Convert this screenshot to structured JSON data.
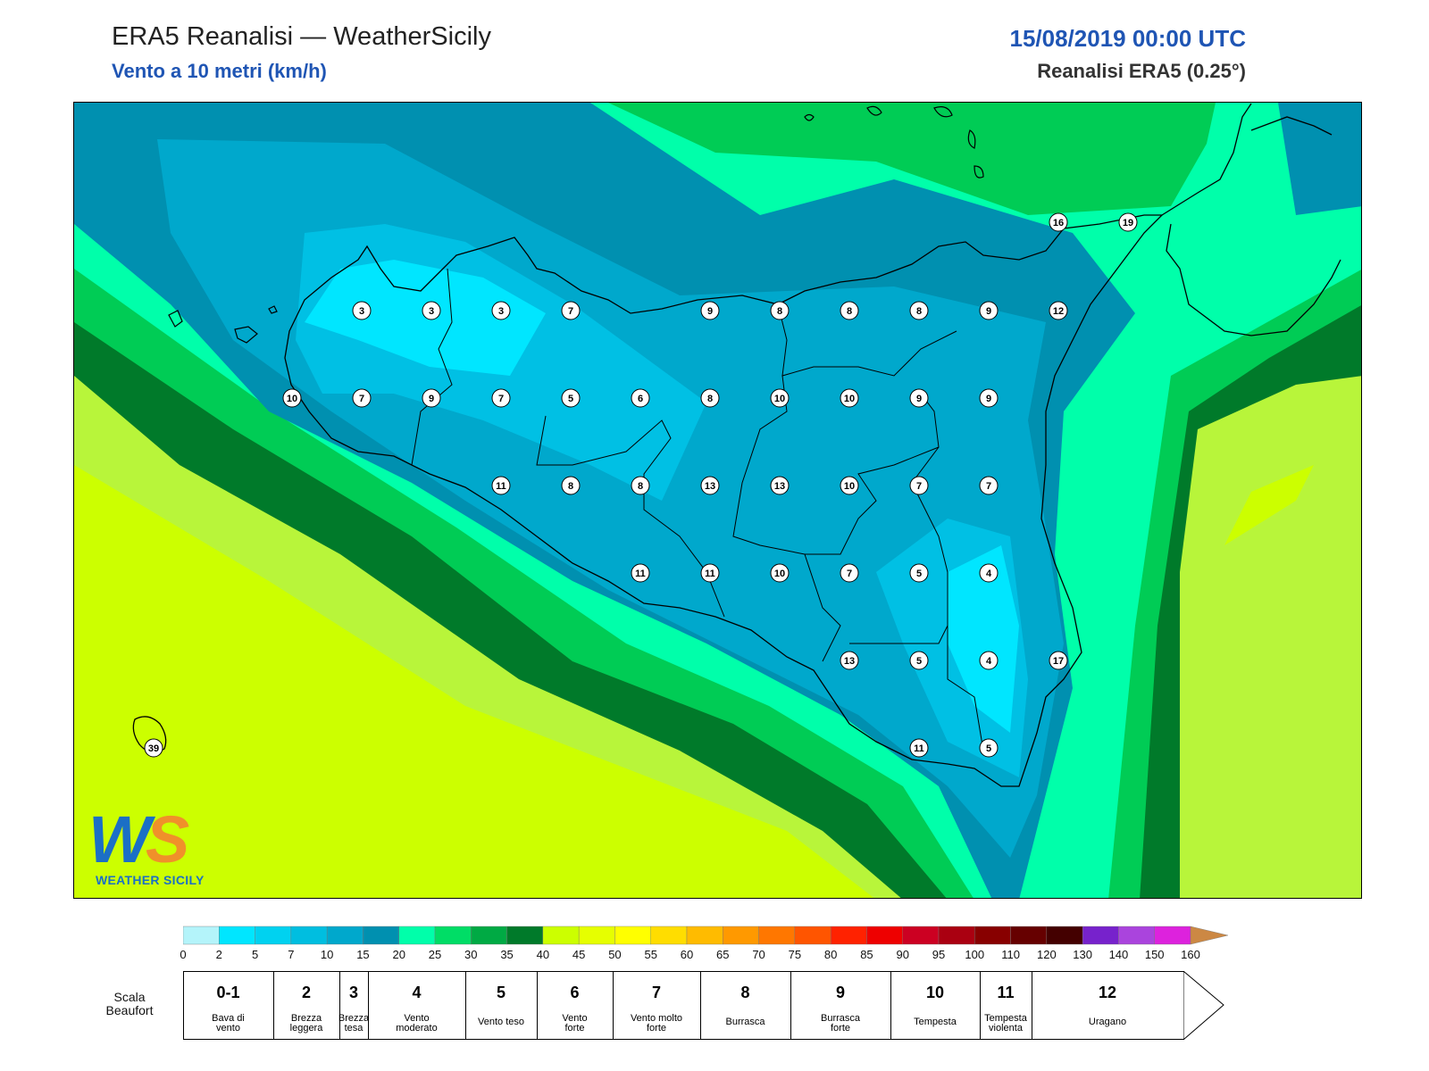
{
  "header": {
    "title": "ERA5 Reanalisi — WeatherSicily",
    "subtitle": "Vento a 10 metri (km/h)",
    "datetime": "15/08/2019 00:00 UTC",
    "source": "Reanalisi ERA5 (0.25°)"
  },
  "logo": {
    "mark_w": "W",
    "mark_s": "S",
    "tagline": "WEATHER SICILY"
  },
  "wind_labels": [
    "3",
    "3",
    "3",
    "7",
    "9",
    "8",
    "8",
    "8",
    "9",
    "12",
    "16",
    "19",
    "10",
    "7",
    "9",
    "7",
    "5",
    "6",
    "8",
    "10",
    "10",
    "9",
    "9",
    "11",
    "8",
    "8",
    "13",
    "13",
    "10",
    "7",
    "7",
    "11",
    "11",
    "10",
    "7",
    "5",
    "4",
    "13",
    "5",
    "4",
    "17",
    "11",
    "5",
    "39"
  ],
  "colorbar": {
    "ticks": [
      "0",
      "2",
      "5",
      "7",
      "10",
      "15",
      "20",
      "25",
      "30",
      "35",
      "40",
      "45",
      "50",
      "55",
      "60",
      "65",
      "70",
      "75",
      "80",
      "85",
      "90",
      "95",
      "100",
      "110",
      "120",
      "130",
      "140",
      "150",
      "160"
    ],
    "colors": [
      "#b4f4fa",
      "#00e6ff",
      "#00d2f0",
      "#00bee0",
      "#00a8cc",
      "#0090b0",
      "#00ffaa",
      "#00dd66",
      "#00aa44",
      "#007a2a",
      "#ccff00",
      "#e6ff00",
      "#ffff00",
      "#ffdd00",
      "#ffbb00",
      "#ff9900",
      "#ff7700",
      "#ff5500",
      "#ff2200",
      "#ee0000",
      "#cc0022",
      "#aa0011",
      "#880000",
      "#660000",
      "#440000",
      "#7722cc",
      "#aa44dd",
      "#dd22dd",
      "#888888",
      "#555555",
      "#000000",
      "#884422",
      "#cc8844"
    ]
  },
  "beaufort": {
    "label_line1": "Scala",
    "label_line2": "Beaufort",
    "classes": [
      {
        "force": "0-1",
        "name1": "Bava di",
        "name2": "vento"
      },
      {
        "force": "2",
        "name1": "Brezza",
        "name2": "leggera"
      },
      {
        "force": "3",
        "name1": "Brezza",
        "name2": "tesa"
      },
      {
        "force": "4",
        "name1": "Vento",
        "name2": "moderato"
      },
      {
        "force": "5",
        "name1": "Vento teso",
        "name2": ""
      },
      {
        "force": "6",
        "name1": "Vento",
        "name2": "forte"
      },
      {
        "force": "7",
        "name1": "Vento molto",
        "name2": "forte"
      },
      {
        "force": "8",
        "name1": "Burrasca",
        "name2": ""
      },
      {
        "force": "9",
        "name1": "Burrasca",
        "name2": "forte"
      },
      {
        "force": "10",
        "name1": "Tempesta",
        "name2": ""
      },
      {
        "force": "11",
        "name1": "Tempesta",
        "name2": "violenta"
      },
      {
        "force": "12",
        "name1": "Uragano",
        "name2": ""
      }
    ]
  }
}
